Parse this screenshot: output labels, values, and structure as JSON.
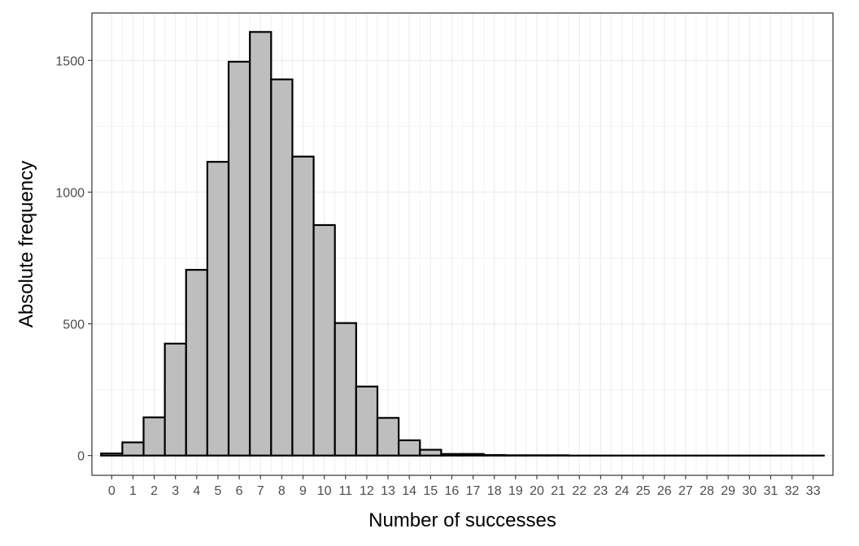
{
  "chart_data": {
    "type": "bar",
    "title": "",
    "xlabel": "Number of successes",
    "ylabel": "Absolute frequency",
    "categories": [
      "0",
      "1",
      "2",
      "3",
      "4",
      "5",
      "6",
      "7",
      "8",
      "9",
      "10",
      "11",
      "12",
      "13",
      "14",
      "15",
      "16",
      "17",
      "18",
      "19",
      "20",
      "21",
      "22",
      "23",
      "24",
      "25",
      "26",
      "27",
      "28",
      "29",
      "30",
      "31",
      "32",
      "33"
    ],
    "values": [
      8,
      50,
      145,
      425,
      705,
      1115,
      1495,
      1608,
      1428,
      1135,
      875,
      503,
      262,
      143,
      58,
      22,
      6,
      6,
      2,
      1,
      1,
      1,
      0,
      0,
      0,
      0,
      0,
      0,
      0,
      0,
      0,
      0,
      0,
      0
    ],
    "ylim": [
      -75,
      1680
    ],
    "yticks": [
      0,
      500,
      1000,
      1500
    ],
    "ytick_labels": [
      "0",
      "500",
      "1000",
      "1500"
    ],
    "grid": true,
    "legend": "none",
    "colors": {
      "bar_fill": "#bebebe",
      "bar_stroke": "#000000",
      "grid_major": "#ebebeb",
      "grid_minor": "#f2f2f2",
      "panel_border": "#333333",
      "tick_label": "#4d4d4d"
    }
  }
}
